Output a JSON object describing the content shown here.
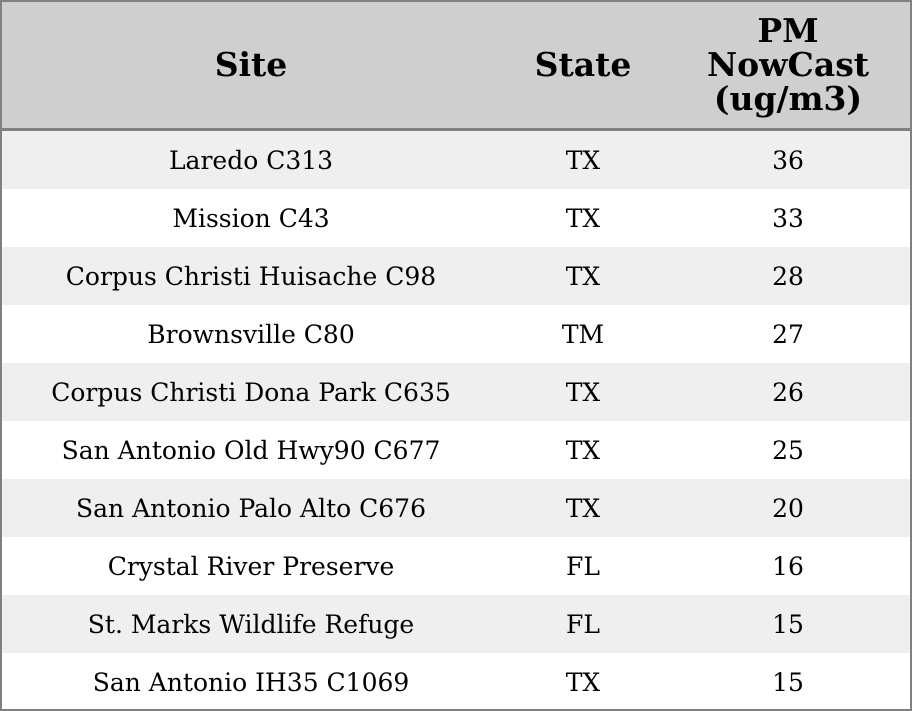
{
  "table": {
    "header": [
      "Site",
      "State",
      "PM NowCast (ug/m3)"
    ],
    "rows": [
      [
        "Laredo C313",
        "TX",
        36
      ],
      [
        "Mission C43",
        "TX",
        33
      ],
      [
        "Corpus Christi Huisache C98",
        "TX",
        28
      ],
      [
        "Brownsville C80",
        "TM",
        27
      ],
      [
        "Corpus Christi Dona Park C635",
        "TX",
        26
      ],
      [
        "San Antonio Old Hwy90 C677",
        "TX",
        25
      ],
      [
        "San Antonio Palo Alto C676",
        "TX",
        20
      ],
      [
        "Crystal River Preserve",
        "FL",
        16
      ],
      [
        "St. Marks Wildlife Refuge",
        "FL",
        15
      ],
      [
        "San Antonio IH35 C1069",
        "TX",
        15
      ]
    ]
  }
}
